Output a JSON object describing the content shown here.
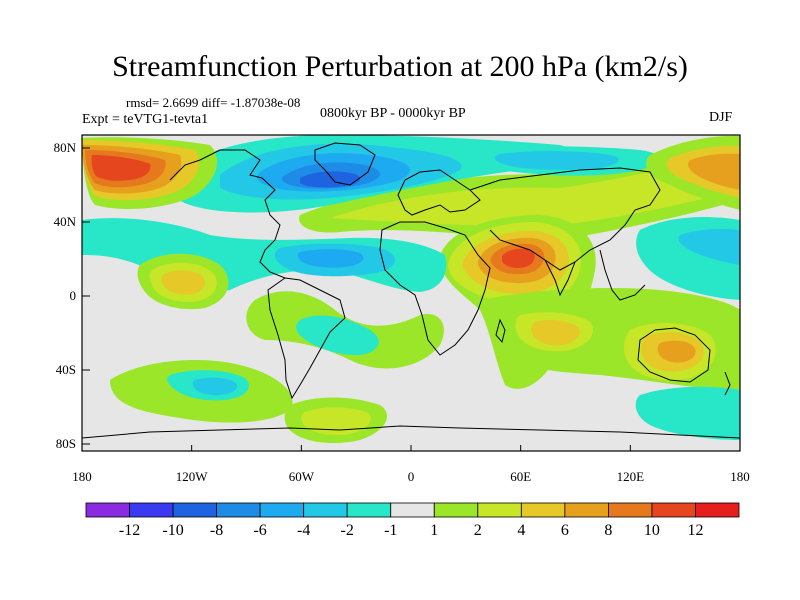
{
  "title": "Streamfunction Perturbation at 200 hPa (km2/s)",
  "stats": "rmsd= 2.6699 diff= -1.87038e-08",
  "experiment": "Expt = teVTG1-tevta1",
  "period": "0800kyr BP - 0000kyr BP",
  "season": "DJF",
  "lat_ticks": [
    "80N",
    "40N",
    "0",
    "40S",
    "80S"
  ],
  "lon_ticks": [
    "180",
    "120W",
    "60W",
    "0",
    "60E",
    "120E",
    "180"
  ],
  "colorbar": {
    "labels": [
      "-12",
      "-10",
      "-8",
      "-6",
      "-4",
      "-2",
      "-1",
      "1",
      "2",
      "4",
      "6",
      "8",
      "10",
      "12"
    ],
    "colors": [
      "#8a2be2",
      "#3a3af0",
      "#1e64e0",
      "#1e8ce6",
      "#1eaaf0",
      "#23c8e6",
      "#28e6c8",
      "#e6e6e6",
      "#9be628",
      "#c8e628",
      "#e6c828",
      "#e6a01e",
      "#e6781e",
      "#e6461e",
      "#e61e1e"
    ]
  },
  "field_colors": {
    "bg": "#e6e6e6",
    "n1": "#28e6c8",
    "n2": "#23c8e6",
    "n3": "#1eaaf0",
    "n4": "#1e8ce6",
    "n5": "#1e64e0",
    "p1": "#9be628",
    "p2": "#c8e628",
    "p3": "#e6c828",
    "p4": "#e6a01e",
    "p5": "#e6781e",
    "p6": "#e6461e",
    "p7": "#e61e1e"
  }
}
